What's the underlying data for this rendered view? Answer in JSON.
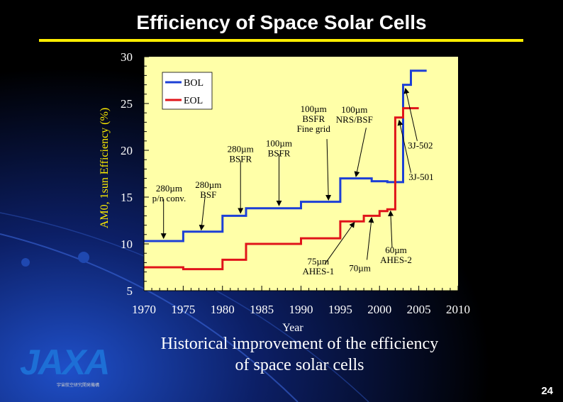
{
  "slide": {
    "title": "Efficiency of Space Solar Cells",
    "caption_line1": "Historical improvement  of the efficiency",
    "caption_line2": "of space solar cells",
    "page_number": "24",
    "logo_text": "JAXA",
    "logo_subtitle": "宇宙航空研究開発機構",
    "colors": {
      "background": "#000000",
      "accent": "#ffee00",
      "plot_bg": "#ffffa8"
    }
  },
  "chart_data": {
    "type": "line",
    "xlabel": "Year",
    "ylabel": "AM0, 1sun Efficiency  (%)",
    "xlim": [
      1970,
      2010
    ],
    "ylim": [
      5,
      30
    ],
    "x_ticks": [
      1970,
      1975,
      1980,
      1985,
      1990,
      1995,
      2000,
      2005,
      2010
    ],
    "y_ticks": [
      5,
      10,
      15,
      20,
      25,
      30
    ],
    "grid": false,
    "legend_position": "top-left",
    "series": [
      {
        "name": "BOL",
        "color": "#1c3fd6",
        "points": [
          [
            1970,
            10.3
          ],
          [
            1975,
            10.3
          ],
          [
            1975,
            11.3
          ],
          [
            1980,
            11.3
          ],
          [
            1980,
            13
          ],
          [
            1983,
            13
          ],
          [
            1983,
            13.8
          ],
          [
            1990,
            13.8
          ],
          [
            1990,
            14.5
          ],
          [
            1995,
            14.5
          ],
          [
            1995,
            17
          ],
          [
            1999,
            17
          ],
          [
            1999,
            16.7
          ],
          [
            2001,
            16.7
          ],
          [
            2001,
            16.6
          ],
          [
            2003,
            16.6
          ],
          [
            2003,
            27
          ],
          [
            2004,
            27
          ],
          [
            2004,
            28.5
          ],
          [
            2006,
            28.5
          ]
        ]
      },
      {
        "name": "EOL",
        "color": "#e0141a",
        "points": [
          [
            1970,
            7.5
          ],
          [
            1975,
            7.5
          ],
          [
            1975,
            7.3
          ],
          [
            1980,
            7.3
          ],
          [
            1980,
            8.3
          ],
          [
            1983,
            8.3
          ],
          [
            1983,
            10
          ],
          [
            1990,
            10
          ],
          [
            1990,
            10.6
          ],
          [
            1995,
            10.6
          ],
          [
            1995,
            12.4
          ],
          [
            1998,
            12.4
          ],
          [
            1998,
            13
          ],
          [
            2000,
            13
          ],
          [
            2000,
            13.5
          ],
          [
            2001,
            13.5
          ],
          [
            2001,
            13.7
          ],
          [
            2002,
            13.7
          ],
          [
            2002,
            23.5
          ],
          [
            2003,
            23.5
          ],
          [
            2003,
            24.5
          ],
          [
            2005,
            24.5
          ]
        ]
      }
    ],
    "annotations": [
      {
        "lines": [
          "280µm",
          "p/n conv."
        ],
        "text_at": [
          1973.2,
          15.6
        ],
        "arrow_from": [
          1972.5,
          14.8
        ],
        "arrow_to": [
          1972.5,
          10.6
        ]
      },
      {
        "lines": [
          "280µm",
          "BSF"
        ],
        "text_at": [
          1978.2,
          16.0
        ],
        "arrow_from": [
          1977.8,
          15.2
        ],
        "arrow_to": [
          1977.3,
          11.5
        ]
      },
      {
        "lines": [
          "280µm",
          "BSFR"
        ],
        "text_at": [
          1982.3,
          19.8
        ],
        "arrow_from": [
          1982.3,
          18.9
        ],
        "arrow_to": [
          1982.3,
          13.3
        ]
      },
      {
        "lines": [
          "100µm",
          "BSFR"
        ],
        "text_at": [
          1987.2,
          20.4
        ],
        "arrow_from": [
          1987.2,
          19.6
        ],
        "arrow_to": [
          1987.2,
          14.1
        ]
      },
      {
        "lines": [
          "100µm",
          "BSFR",
          "Fine grid"
        ],
        "text_at": [
          1991.6,
          24.1
        ],
        "arrow_from": [
          1993.3,
          21.2
        ],
        "arrow_to": [
          1993.5,
          14.7
        ]
      },
      {
        "lines": [
          "100µm",
          "NRS/BSF"
        ],
        "text_at": [
          1996.8,
          24.0
        ],
        "arrow_from": [
          1998.3,
          22.4
        ],
        "arrow_to": [
          1997.0,
          17.2
        ]
      },
      {
        "lines": [
          "3J-502"
        ],
        "text_at": [
          2005.2,
          20.2
        ],
        "arrow_from": [
          2004.8,
          21.0
        ],
        "arrow_to": [
          2003.3,
          26.6
        ]
      },
      {
        "lines": [
          "3J-501"
        ],
        "text_at": [
          2005.3,
          16.8
        ],
        "arrow_from": [
          2004.0,
          17.6
        ],
        "arrow_to": [
          2002.5,
          23.2
        ]
      },
      {
        "lines": [
          "75µm",
          "AHES-1"
        ],
        "text_at": [
          1992.2,
          7.8
        ],
        "arrow_from": [
          1993.0,
          7.8
        ],
        "arrow_to": [
          1996.8,
          12.3
        ]
      },
      {
        "lines": [
          "70µm"
        ],
        "text_at": [
          1997.5,
          7.1
        ],
        "arrow_from": [
          1998.4,
          8.3
        ],
        "arrow_to": [
          1999.0,
          12.8
        ]
      },
      {
        "lines": [
          "60µm",
          "AHES-2"
        ],
        "text_at": [
          2002.1,
          9.0
        ],
        "arrow_from": [
          2001.6,
          9.6
        ],
        "arrow_to": [
          2001.4,
          13.5
        ]
      }
    ]
  }
}
